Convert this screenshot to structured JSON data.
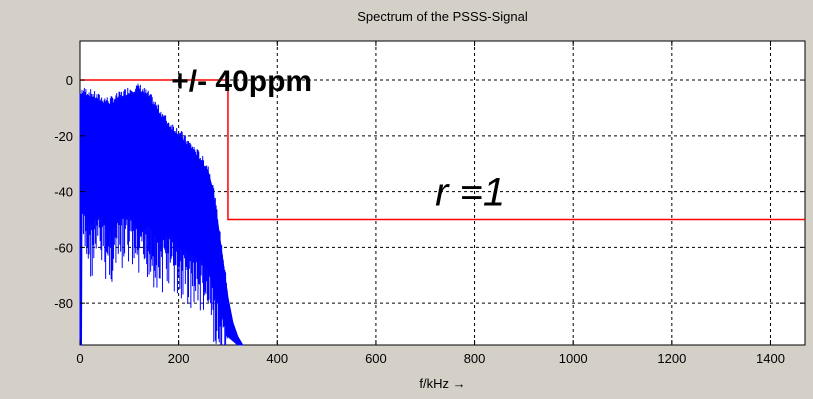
{
  "chart_data": {
    "type": "line",
    "title": "Spectrum of the PSSS-Signal",
    "xlabel": "f/kHz →",
    "ylabel": "",
    "xlim": [
      0,
      1470
    ],
    "ylim": [
      -95,
      14
    ],
    "x_ticks": [
      0,
      200,
      400,
      600,
      800,
      1000,
      1200,
      1400
    ],
    "y_ticks": [
      0,
      -20,
      -40,
      -60,
      -80
    ],
    "grid": true,
    "series": [
      {
        "color": "#0000ff",
        "envelope_upper": [
          [
            0,
            -5
          ],
          [
            20,
            -6
          ],
          [
            40,
            -8
          ],
          [
            60,
            -9
          ],
          [
            80,
            -7
          ],
          [
            100,
            -5
          ],
          [
            120,
            -4
          ],
          [
            140,
            -7
          ],
          [
            160,
            -12
          ],
          [
            180,
            -17
          ],
          [
            200,
            -20
          ],
          [
            220,
            -24
          ],
          [
            240,
            -28
          ],
          [
            260,
            -33
          ],
          [
            270,
            -40
          ],
          [
            280,
            -52
          ],
          [
            290,
            -65
          ],
          [
            300,
            -78
          ],
          [
            310,
            -87
          ],
          [
            320,
            -92
          ],
          [
            330,
            -95
          ]
        ],
        "envelope_lower": [
          [
            0,
            -95
          ],
          [
            3,
            -95
          ],
          [
            4,
            -45
          ],
          [
            20,
            -52
          ],
          [
            40,
            -48
          ],
          [
            60,
            -55
          ],
          [
            80,
            -50
          ],
          [
            100,
            -48
          ],
          [
            120,
            -55
          ],
          [
            140,
            -52
          ],
          [
            160,
            -58
          ],
          [
            180,
            -55
          ],
          [
            200,
            -60
          ],
          [
            220,
            -62
          ],
          [
            240,
            -64
          ],
          [
            260,
            -68
          ],
          [
            280,
            -80
          ],
          [
            300,
            -92
          ],
          [
            320,
            -95
          ]
        ]
      },
      {
        "color": "#ff0000",
        "points": [
          [
            0,
            0
          ],
          [
            300,
            0
          ],
          [
            300,
            -50
          ],
          [
            1470,
            -50
          ]
        ]
      }
    ],
    "annotations": [
      {
        "text": "+/- 40ppm",
        "x": 185,
        "y": -4
      },
      {
        "text": "r =1",
        "x": 720,
        "y": -45
      }
    ]
  }
}
